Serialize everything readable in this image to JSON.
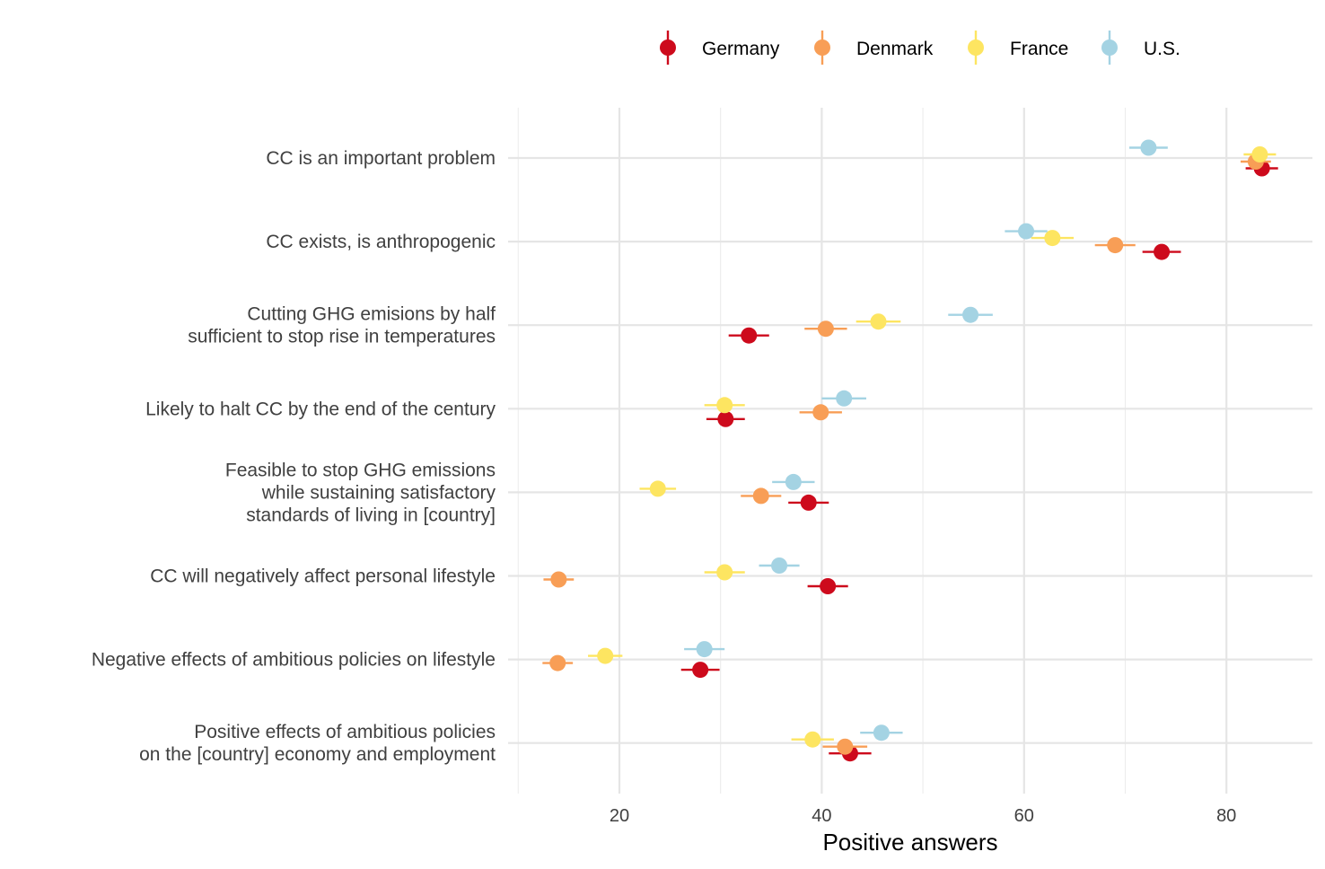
{
  "chart_data": {
    "type": "scatter",
    "xlabel": "Positive answers",
    "xticks": [
      20,
      40,
      60,
      80
    ],
    "xlim": [
      9,
      88.5
    ],
    "grid": true,
    "legend_position": "top",
    "categories": [
      [
        "CC is an important problem"
      ],
      [
        "CC exists, is anthropogenic"
      ],
      [
        "Cutting GHG emisions by half",
        "sufficient to stop rise in temperatures"
      ],
      [
        "Likely to halt CC by the end of the century"
      ],
      [
        "Feasible to stop GHG emissions",
        "while sustaining satisfactory",
        "standards of living in [country]"
      ],
      [
        "CC will negatively affect personal lifestyle"
      ],
      [
        "Negative effects of ambitious policies on lifestyle"
      ],
      [
        "Positive effects of ambitious policies",
        "on the [country] economy and employment"
      ]
    ],
    "series": [
      {
        "name": "Germany",
        "color": "#cd0a1c",
        "values": [
          83.5,
          73.6,
          32.8,
          30.5,
          38.7,
          40.6,
          28.0,
          42.8
        ],
        "err": [
          1.6,
          1.9,
          2.0,
          1.9,
          2.0,
          2.0,
          1.9,
          2.1
        ]
      },
      {
        "name": "Denmark",
        "color": "#f89e56",
        "values": [
          82.9,
          69.0,
          40.4,
          39.9,
          34.0,
          14.0,
          13.9,
          42.3
        ],
        "err": [
          1.5,
          2.0,
          2.1,
          2.1,
          2.0,
          1.5,
          1.5,
          2.2
        ]
      },
      {
        "name": "France",
        "color": "#fde561",
        "values": [
          83.3,
          62.8,
          45.6,
          30.4,
          23.8,
          30.4,
          18.6,
          39.1
        ],
        "err": [
          1.6,
          2.1,
          2.2,
          2.0,
          1.8,
          2.0,
          1.7,
          2.1
        ]
      },
      {
        "name": "U.S.",
        "color": "#a4d3e3",
        "values": [
          72.3,
          60.2,
          54.7,
          42.2,
          37.2,
          35.8,
          28.4,
          45.9
        ],
        "err": [
          1.9,
          2.1,
          2.2,
          2.2,
          2.1,
          2.0,
          2.0,
          2.1
        ]
      }
    ]
  }
}
